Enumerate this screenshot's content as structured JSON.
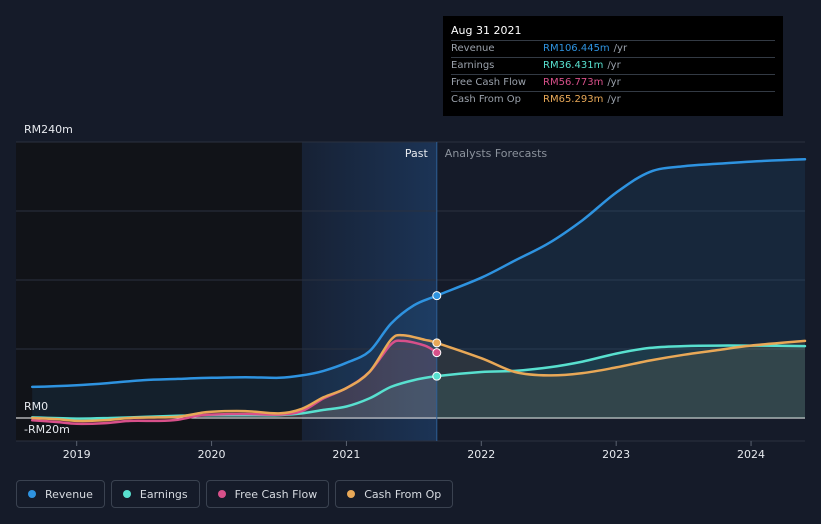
{
  "tooltip": {
    "date": "Aug 31 2021",
    "rows": [
      {
        "label": "Revenue",
        "value": "RM106.445m",
        "unit": "/yr",
        "color": "#2e93e0"
      },
      {
        "label": "Earnings",
        "value": "RM36.431m",
        "unit": "/yr",
        "color": "#58e0cf"
      },
      {
        "label": "Free Cash Flow",
        "value": "RM56.773m",
        "unit": "/yr",
        "color": "#d8508a"
      },
      {
        "label": "Cash From Op",
        "value": "RM65.293m",
        "unit": "/yr",
        "color": "#e8a857"
      }
    ]
  },
  "legend": [
    {
      "label": "Revenue",
      "color": "#2e93e0"
    },
    {
      "label": "Earnings",
      "color": "#58e0cf"
    },
    {
      "label": "Free Cash Flow",
      "color": "#d8508a"
    },
    {
      "label": "Cash From Op",
      "color": "#e8a857"
    }
  ],
  "chart_data": {
    "type": "line",
    "y_axis_labels": [
      "RM240m",
      "RM0",
      "-RM20m"
    ],
    "ylim": [
      -20,
      240
    ],
    "xlim": [
      2018.55,
      2024.4
    ],
    "x_tick_labels": [
      "2019",
      "2020",
      "2021",
      "2022",
      "2023",
      "2024"
    ],
    "x_ticks": [
      2019,
      2020,
      2021,
      2022,
      2023,
      2024
    ],
    "past_label": "Past",
    "forecast_label": "Analysts Forecasts",
    "divider_x": 2021.67,
    "past_region_start": 2020.67,
    "grid": true,
    "legend_position": "bottom-left",
    "series": [
      {
        "name": "Revenue",
        "color": "#2e93e0",
        "x": [
          2018.67,
          2019.0,
          2019.25,
          2019.5,
          2019.75,
          2020.0,
          2020.25,
          2020.5,
          2020.67,
          2020.83,
          2021.0,
          2021.17,
          2021.33,
          2021.5,
          2021.67,
          2022.0,
          2022.25,
          2022.5,
          2022.75,
          2023.0,
          2023.25,
          2023.5,
          2023.75,
          2024.0,
          2024.4
        ],
        "y": [
          27,
          28.5,
          30.5,
          33,
          34,
          35,
          35.5,
          35,
          37,
          41,
          48,
          58,
          82,
          98,
          106.4,
          122,
          137,
          152,
          172,
          196,
          214,
          219,
          221,
          223,
          225
        ]
      },
      {
        "name": "Earnings",
        "color": "#58e0cf",
        "x": [
          2018.67,
          2019.0,
          2019.25,
          2019.5,
          2019.75,
          2020.0,
          2020.25,
          2020.5,
          2020.67,
          2020.83,
          2021.0,
          2021.17,
          2021.33,
          2021.5,
          2021.67,
          2022.0,
          2022.25,
          2022.5,
          2022.75,
          2023.0,
          2023.25,
          2023.5,
          2023.75,
          2024.0,
          2024.4
        ],
        "y": [
          0.5,
          -0.5,
          0,
          1,
          2,
          2.5,
          2.5,
          2.5,
          4,
          7,
          10,
          17,
          27,
          33,
          36.4,
          40,
          41,
          44,
          49,
          56,
          61,
          62.5,
          63,
          63,
          62.5
        ]
      },
      {
        "name": "Free Cash Flow",
        "color": "#d8508a",
        "x": [
          2018.67,
          2018.85,
          2019.0,
          2019.2,
          2019.4,
          2019.6,
          2019.75,
          2019.9,
          2020.0,
          2020.25,
          2020.5,
          2020.67,
          2020.83,
          2021.0,
          2021.17,
          2021.33,
          2021.42,
          2021.58,
          2021.67
        ],
        "y": [
          -2,
          -3.5,
          -5,
          -4.5,
          -2.5,
          -2.5,
          -1.5,
          2,
          3,
          3.5,
          3,
          6,
          17,
          26,
          40,
          64,
          67,
          63,
          56.8
        ]
      },
      {
        "name": "Cash From Op",
        "color": "#e8a857",
        "x": [
          2018.67,
          2018.85,
          2019.0,
          2019.2,
          2019.4,
          2019.6,
          2019.75,
          2019.9,
          2020.0,
          2020.25,
          2020.5,
          2020.67,
          2020.83,
          2021.0,
          2021.17,
          2021.33,
          2021.42,
          2021.58,
          2021.67,
          2022.0,
          2022.25,
          2022.5,
          2022.75,
          2023.0,
          2023.25,
          2023.5,
          2023.75,
          2024.0,
          2024.4
        ],
        "y": [
          0,
          -1,
          -2.5,
          -2,
          0,
          0.5,
          1,
          4,
          5.5,
          6,
          4,
          8,
          18,
          26,
          40,
          68,
          72,
          68,
          65.3,
          52,
          40,
          37,
          39,
          44,
          50,
          55,
          59,
          63,
          67
        ]
      }
    ]
  }
}
